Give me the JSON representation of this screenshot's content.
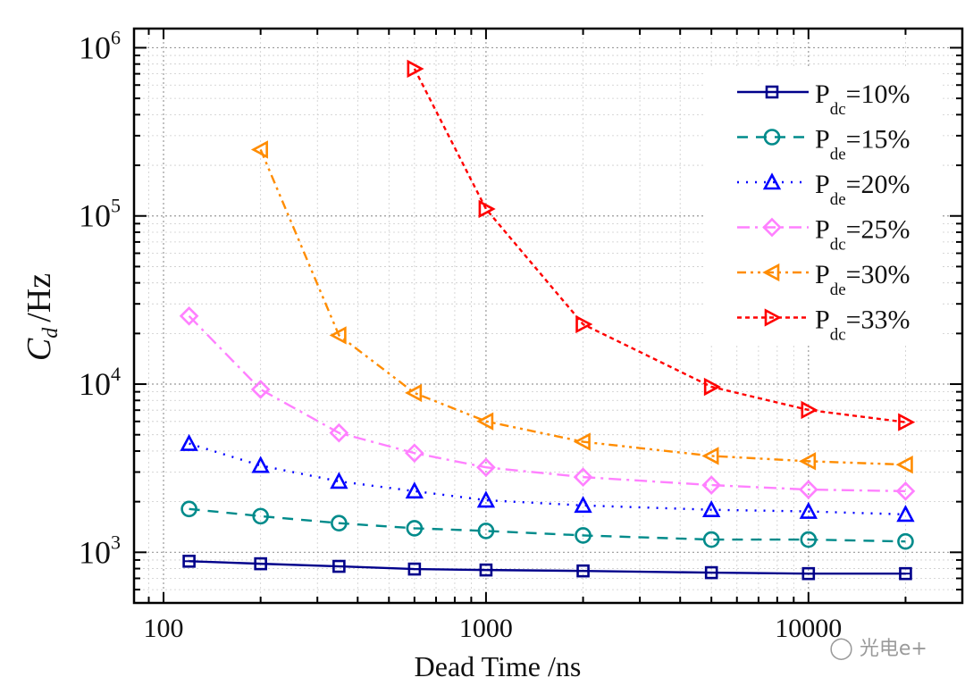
{
  "chart_data": {
    "type": "line",
    "title": "",
    "xlabel": "Dead Time /ns",
    "ylabel_main": "C",
    "ylabel_sub": "d",
    "ylabel_unit": "/Hz",
    "xscale": "log",
    "yscale": "log",
    "xlim": [
      81,
      30000
    ],
    "ylim": [
      500,
      1300000
    ],
    "xticks": [
      {
        "value": 100,
        "label": "100"
      },
      {
        "value": 1000,
        "label": "1000"
      },
      {
        "value": 10000,
        "label": "10000"
      }
    ],
    "yticks": [
      {
        "value": 1000,
        "base": "10",
        "exp": "3"
      },
      {
        "value": 10000,
        "base": "10",
        "exp": "4"
      },
      {
        "value": 100000,
        "base": "10",
        "exp": "5"
      },
      {
        "value": 1000000,
        "base": "10",
        "exp": "6"
      }
    ],
    "grid": true,
    "legend_position": "top-right",
    "series": [
      {
        "name": "P_dc=10%",
        "label_main": "P",
        "label_sub": "dc",
        "label_rest": "=10%",
        "color": "#00008b",
        "dash": "solid",
        "marker": "square",
        "x": [
          120,
          200,
          350,
          600,
          1000,
          2000,
          5000,
          10000,
          20000
        ],
        "y": [
          885,
          855,
          825,
          795,
          785,
          775,
          757,
          747,
          747
        ]
      },
      {
        "name": "P_de=15%",
        "label_main": "P",
        "label_sub": "de",
        "label_rest": "=15%",
        "color": "#008b8b",
        "dash": "dash",
        "marker": "circle",
        "x": [
          120,
          200,
          350,
          600,
          1000,
          2000,
          5000,
          10000,
          20000
        ],
        "y": [
          1810,
          1640,
          1490,
          1390,
          1340,
          1260,
          1190,
          1190,
          1160
        ]
      },
      {
        "name": "P_de=20%",
        "label_main": "P",
        "label_sub": "de",
        "label_rest": "=20%",
        "color": "#0000ff",
        "dash": "dot",
        "marker": "triangle-up",
        "x": [
          120,
          200,
          350,
          600,
          1000,
          2000,
          5000,
          10000,
          20000
        ],
        "y": [
          4430,
          3280,
          2640,
          2310,
          2040,
          1900,
          1790,
          1750,
          1680
        ]
      },
      {
        "name": "P_dc=25%",
        "label_main": "P",
        "label_sub": "dc",
        "label_rest": "=25%",
        "color": "#ff80ff",
        "dash": "dashdot",
        "marker": "diamond",
        "x": [
          120,
          200,
          350,
          600,
          1000,
          2000,
          5000,
          10000,
          20000
        ],
        "y": [
          25400,
          9300,
          5130,
          3890,
          3200,
          2800,
          2510,
          2360,
          2310
        ]
      },
      {
        "name": "P_de=30%",
        "label_main": "P",
        "label_sub": "de",
        "label_rest": "=30%",
        "color": "#ff8c00",
        "dash": "dashdotdot",
        "marker": "triangle-left",
        "x": [
          200,
          350,
          600,
          1000,
          2000,
          5000,
          10000,
          20000
        ],
        "y": [
          248000,
          19500,
          8860,
          6010,
          4540,
          3740,
          3480,
          3320
        ]
      },
      {
        "name": "P_dc=33%",
        "label_main": "P",
        "label_sub": "dc",
        "label_rest": "=33%",
        "color": "#ff0000",
        "dash": "shortdash",
        "marker": "triangle-right",
        "x": [
          600,
          1000,
          2000,
          5000,
          10000,
          20000
        ],
        "y": [
          750000,
          110000,
          22700,
          9640,
          7020,
          5940
        ]
      }
    ]
  },
  "watermark": {
    "icon": "wechat-icon",
    "text": "光电e+"
  }
}
